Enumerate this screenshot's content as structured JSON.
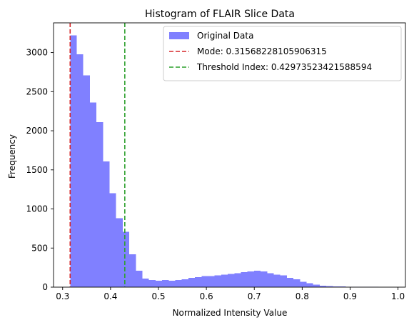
{
  "chart_data": {
    "type": "bar",
    "title": "Histogram of FLAIR Slice Data",
    "xlabel": "Normalized Intensity Value",
    "ylabel": "Frequency",
    "xlim": [
      0.281,
      1.0155
    ],
    "ylim": [
      0,
      3380
    ],
    "xticks": [
      "0.3",
      "0.4",
      "0.5",
      "0.6",
      "0.7",
      "0.8",
      "0.9",
      "1.0"
    ],
    "yticks": [
      "0",
      "500",
      "1000",
      "1500",
      "2000",
      "2500",
      "3000"
    ],
    "bin_start": 0.31568,
    "bin_width": 0.013706,
    "values": [
      3220,
      2980,
      2710,
      2360,
      2110,
      1610,
      1200,
      880,
      710,
      420,
      210,
      110,
      90,
      80,
      90,
      80,
      90,
      100,
      120,
      130,
      140,
      140,
      150,
      160,
      170,
      180,
      190,
      200,
      210,
      200,
      180,
      160,
      150,
      120,
      100,
      70,
      50,
      30,
      20,
      15,
      10,
      8,
      5,
      5,
      5,
      3,
      3,
      2,
      2,
      1,
      1,
      1,
      1
    ],
    "bar_color": "#8080ff",
    "vlines": [
      {
        "name": "Mode: 0.31568228105906315",
        "x": 0.31568228105906315,
        "color": "#d62728"
      },
      {
        "name": "Threshold Index: 0.42973523421588594",
        "x": 0.42973523421588594,
        "color": "#2ca02c"
      }
    ],
    "legend": {
      "placement": "top-right",
      "entries": [
        "Original Data",
        "Mode: 0.31568228105906315",
        "Threshold Index: 0.42973523421588594"
      ]
    }
  }
}
